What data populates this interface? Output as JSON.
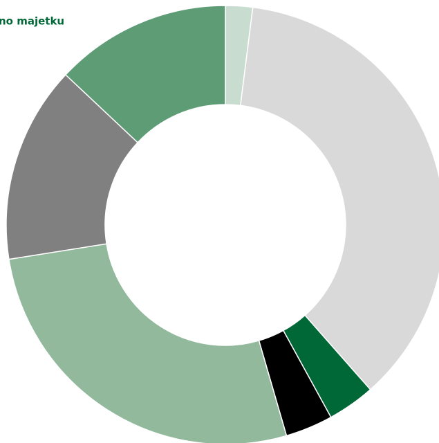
{
  "chart_data": {
    "type": "donut",
    "title": "no majetku",
    "values": [
      2,
      36.5,
      3.5,
      3.5,
      27,
      14.5,
      13
    ],
    "colors": [
      "#c8dccf",
      "#d9d9d9",
      "#006837",
      "#000000",
      "#93b99d",
      "#808080",
      "#5e9c76"
    ]
  }
}
